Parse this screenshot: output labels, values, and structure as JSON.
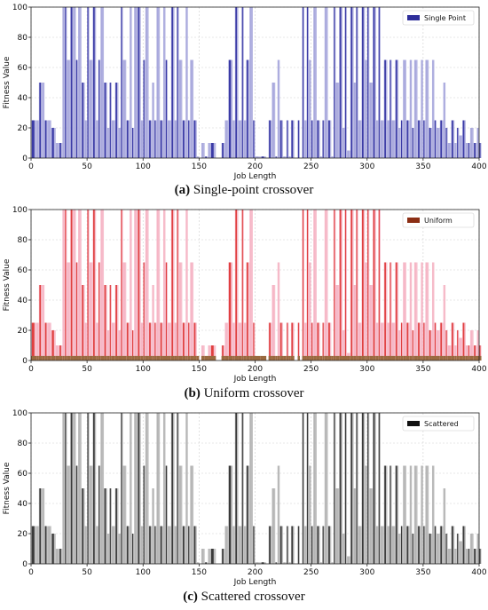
{
  "chart_data": [
    {
      "type": "bar",
      "caption_letter": "(a)",
      "caption_text": " Single-point crossover",
      "xlabel": "Job Length",
      "ylabel": "Fitness Value",
      "xlim": [
        0,
        400
      ],
      "ylim": [
        0,
        100
      ],
      "xticks": [
        "0",
        "50",
        "100",
        "150",
        "200",
        "250",
        "300",
        "350",
        "400"
      ],
      "yticks": [
        "0",
        "20",
        "40",
        "60",
        "80",
        "100"
      ],
      "grid": true,
      "legend": {
        "label": "Single Point",
        "placement": "top-right",
        "color": "#2e2e9a"
      },
      "colors": {
        "dark": "#3b3ba6",
        "light": "#a9a9dd"
      },
      "style": "single"
    },
    {
      "type": "bar",
      "caption_letter": "(b)",
      "caption_text": " Uniform crossover",
      "xlabel": "Job Length",
      "ylabel": "Fitness Value",
      "xlim": [
        0,
        400
      ],
      "ylim": [
        0,
        100
      ],
      "xticks": [
        "0",
        "50",
        "100",
        "150",
        "200",
        "250",
        "300",
        "350",
        "400"
      ],
      "yticks": [
        "0",
        "20",
        "40",
        "60",
        "80",
        "100"
      ],
      "grid": true,
      "legend": {
        "label": "Uniform",
        "placement": "top-right",
        "color": "#8b2e14"
      },
      "colors": {
        "dark": "#e04040",
        "light": "#f6b6c6",
        "base": "#9a6a40"
      },
      "style": "uniform"
    },
    {
      "type": "bar",
      "caption_letter": "(c)",
      "caption_text": " Scattered crossover",
      "xlabel": "Job Length",
      "ylabel": "Fitness Value",
      "xlim": [
        0,
        400
      ],
      "ylim": [
        0,
        100
      ],
      "xticks": [
        "0",
        "50",
        "100",
        "150",
        "200",
        "250",
        "300",
        "350",
        "400"
      ],
      "yticks": [
        "0",
        "20",
        "40",
        "60",
        "80",
        "100"
      ],
      "grid": true,
      "legend": {
        "label": "Scattered",
        "placement": "top-right",
        "color": "#111111"
      },
      "colors": {
        "dark": "#3a3a3a",
        "light": "#b5b5b5"
      },
      "style": "scattered"
    }
  ],
  "series_data": {
    "fitness_by_job_length": [
      [
        0,
        25
      ],
      [
        5,
        25
      ],
      [
        7,
        50
      ],
      [
        10,
        50
      ],
      [
        12,
        25
      ],
      [
        15,
        25
      ],
      [
        18,
        20
      ],
      [
        22,
        10
      ],
      [
        25,
        10
      ],
      [
        28,
        100
      ],
      [
        30,
        100
      ],
      [
        32,
        65
      ],
      [
        35,
        100
      ],
      [
        38,
        100
      ],
      [
        40,
        65
      ],
      [
        42,
        100
      ],
      [
        45,
        50
      ],
      [
        48,
        25
      ],
      [
        50,
        100
      ],
      [
        52,
        65
      ],
      [
        55,
        100
      ],
      [
        58,
        25
      ],
      [
        60,
        65
      ],
      [
        62,
        100
      ],
      [
        65,
        50
      ],
      [
        68,
        20
      ],
      [
        70,
        50
      ],
      [
        72,
        25
      ],
      [
        75,
        50
      ],
      [
        78,
        20
      ],
      [
        80,
        100
      ],
      [
        82,
        65
      ],
      [
        85,
        25
      ],
      [
        88,
        100
      ],
      [
        90,
        20
      ],
      [
        92,
        100
      ],
      [
        95,
        100
      ],
      [
        98,
        25
      ],
      [
        100,
        65
      ],
      [
        102,
        100
      ],
      [
        105,
        25
      ],
      [
        108,
        50
      ],
      [
        110,
        25
      ],
      [
        112,
        100
      ],
      [
        115,
        25
      ],
      [
        118,
        100
      ],
      [
        120,
        65
      ],
      [
        122,
        25
      ],
      [
        125,
        100
      ],
      [
        128,
        25
      ],
      [
        130,
        100
      ],
      [
        132,
        65
      ],
      [
        135,
        25
      ],
      [
        138,
        100
      ],
      [
        140,
        25
      ],
      [
        142,
        65
      ],
      [
        145,
        25
      ],
      [
        148,
        1
      ],
      [
        150,
        0
      ],
      [
        152,
        10
      ],
      [
        155,
        1
      ],
      [
        158,
        10
      ],
      [
        160,
        10
      ],
      [
        165,
        0
      ],
      [
        170,
        10
      ],
      [
        173,
        25
      ],
      [
        176,
        65
      ],
      [
        180,
        25
      ],
      [
        182,
        100
      ],
      [
        185,
        25
      ],
      [
        188,
        100
      ],
      [
        190,
        25
      ],
      [
        192,
        65
      ],
      [
        195,
        100
      ],
      [
        198,
        25
      ],
      [
        200,
        1
      ],
      [
        205,
        1
      ],
      [
        210,
        0
      ],
      [
        212,
        25
      ],
      [
        215,
        50
      ],
      [
        218,
        1
      ],
      [
        220,
        65
      ],
      [
        222,
        25
      ],
      [
        225,
        1
      ],
      [
        228,
        25
      ],
      [
        230,
        1
      ],
      [
        232,
        25
      ],
      [
        235,
        0
      ],
      [
        238,
        25
      ],
      [
        240,
        0
      ],
      [
        242,
        100
      ],
      [
        244,
        25
      ],
      [
        246,
        100
      ],
      [
        248,
        65
      ],
      [
        250,
        25
      ],
      [
        252,
        100
      ],
      [
        255,
        25
      ],
      [
        258,
        1
      ],
      [
        260,
        25
      ],
      [
        262,
        100
      ],
      [
        265,
        25
      ],
      [
        268,
        1
      ],
      [
        270,
        100
      ],
      [
        272,
        50
      ],
      [
        275,
        100
      ],
      [
        278,
        20
      ],
      [
        280,
        100
      ],
      [
        282,
        5
      ],
      [
        285,
        100
      ],
      [
        288,
        50
      ],
      [
        290,
        100
      ],
      [
        292,
        25
      ],
      [
        295,
        100
      ],
      [
        298,
        65
      ],
      [
        300,
        100
      ],
      [
        302,
        50
      ],
      [
        305,
        100
      ],
      [
        308,
        25
      ],
      [
        310,
        100
      ],
      [
        312,
        25
      ],
      [
        315,
        65
      ],
      [
        318,
        25
      ],
      [
        320,
        65
      ],
      [
        322,
        25
      ],
      [
        325,
        65
      ],
      [
        328,
        20
      ],
      [
        330,
        25
      ],
      [
        332,
        65
      ],
      [
        335,
        25
      ],
      [
        338,
        65
      ],
      [
        340,
        20
      ],
      [
        342,
        65
      ],
      [
        345,
        25
      ],
      [
        348,
        65
      ],
      [
        350,
        25
      ],
      [
        352,
        65
      ],
      [
        355,
        20
      ],
      [
        358,
        65
      ],
      [
        360,
        25
      ],
      [
        362,
        20
      ],
      [
        365,
        25
      ],
      [
        368,
        50
      ],
      [
        370,
        20
      ],
      [
        372,
        10
      ],
      [
        375,
        25
      ],
      [
        378,
        10
      ],
      [
        380,
        20
      ],
      [
        382,
        15
      ],
      [
        385,
        25
      ],
      [
        388,
        10
      ],
      [
        390,
        10
      ],
      [
        392,
        20
      ],
      [
        395,
        10
      ],
      [
        398,
        20
      ],
      [
        400,
        10
      ]
    ]
  }
}
